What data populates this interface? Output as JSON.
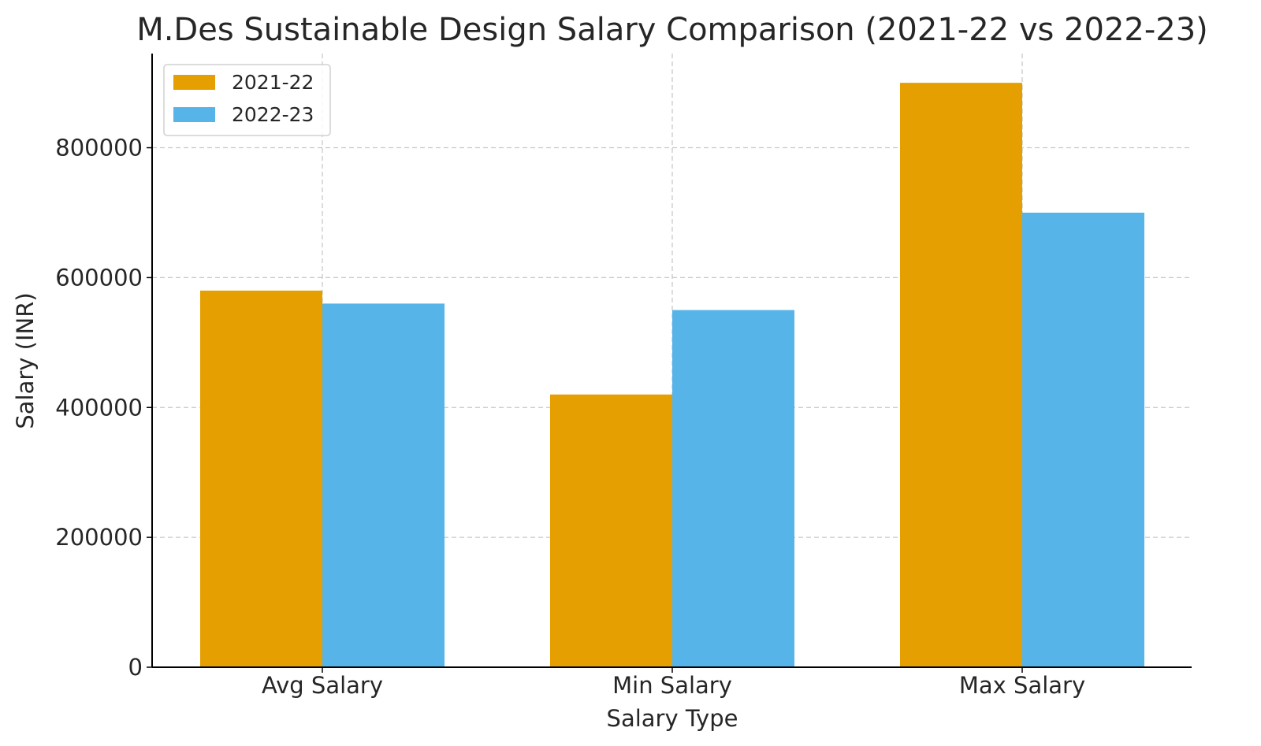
{
  "chart_data": {
    "type": "bar",
    "title": "M.Des Sustainable Design Salary Comparison (2021-22 vs 2022-23)",
    "xlabel": "Salary Type",
    "ylabel": "Salary (INR)",
    "categories": [
      "Avg Salary",
      "Min Salary",
      "Max Salary"
    ],
    "series": [
      {
        "name": "2021-22",
        "color": "#E69F00",
        "values": [
          580000,
          420000,
          900000
        ]
      },
      {
        "name": "2022-23",
        "color": "#56B4E9",
        "values": [
          560000,
          550000,
          700000
        ]
      }
    ],
    "ylim": [
      0,
      945000
    ],
    "yticks": [
      0,
      200000,
      400000,
      600000,
      800000
    ],
    "ytick_labels": [
      "0",
      "200000",
      "400000",
      "600000",
      "800000"
    ],
    "grid": true,
    "legend": "top-left"
  }
}
